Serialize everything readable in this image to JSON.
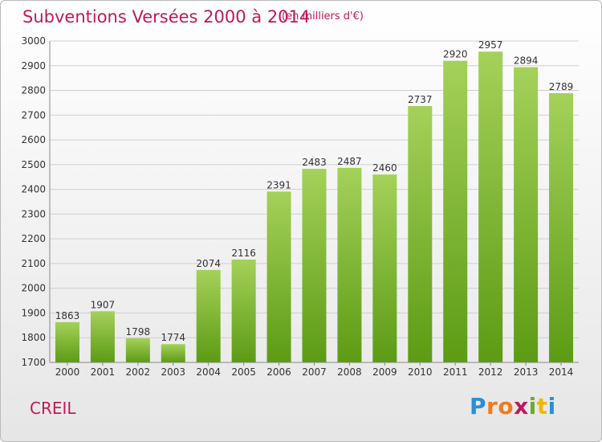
{
  "header": {
    "title": "Subventions Versées 2000 à 2014",
    "unit": "(en milliers d'€)"
  },
  "footer": {
    "location": "CREIL",
    "logo_text": "Proxiti"
  },
  "colors": {
    "title": "#c2185b",
    "bar_top": "#a4d15a",
    "bar_bottom": "#5c9b14",
    "grid": "#cfcfcf",
    "logo_letters": [
      "#2a8fd6",
      "#f07b1d",
      "#f07b1d",
      "#c2185b",
      "#6aac2e",
      "#f2b800",
      "#2a8fd6"
    ]
  },
  "chart_data": {
    "type": "bar",
    "categories": [
      "2000",
      "2001",
      "2002",
      "2003",
      "2004",
      "2005",
      "2006",
      "2007",
      "2008",
      "2009",
      "2010",
      "2011",
      "2012",
      "2013",
      "2014"
    ],
    "values": [
      1863,
      1907,
      1798,
      1774,
      2074,
      2116,
      2391,
      2483,
      2487,
      2460,
      2737,
      2920,
      2957,
      2894,
      2789
    ],
    "title": "Subventions Versées 2000 à 2014",
    "ylim": [
      1700,
      3000
    ],
    "yticks": [
      1700,
      1800,
      1900,
      2000,
      2100,
      2200,
      2300,
      2400,
      2500,
      2600,
      2700,
      2800,
      2900,
      3000
    ],
    "grid": true,
    "legend": "none"
  }
}
